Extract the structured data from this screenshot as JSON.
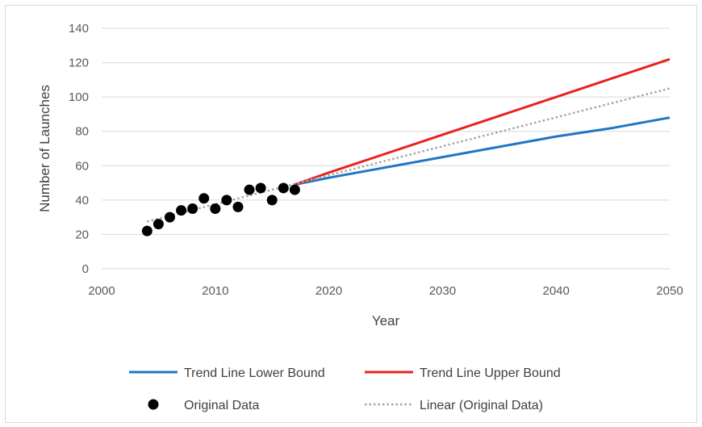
{
  "chart_data": {
    "type": "line",
    "title": "",
    "xlabel": "Year",
    "ylabel": "Number of Launches",
    "xlim": [
      2000,
      2050
    ],
    "ylim": [
      0,
      140
    ],
    "x_ticks": [
      2000,
      2010,
      2020,
      2030,
      2040,
      2050
    ],
    "y_ticks": [
      0,
      20,
      40,
      60,
      80,
      100,
      120,
      140
    ],
    "grid": "horizontal",
    "legend_position": "bottom",
    "series": [
      {
        "name": "Trend Line Lower Bound",
        "kind": "line",
        "color": "#1f77c4",
        "x": [
          2017,
          2020,
          2025,
          2030,
          2035,
          2040,
          2045,
          2050
        ],
        "y": [
          49,
          53,
          59,
          65,
          71,
          77,
          82,
          88
        ]
      },
      {
        "name": "Trend Line Upper Bound",
        "kind": "line",
        "color": "#e8231f",
        "x": [
          2017,
          2020,
          2025,
          2030,
          2035,
          2040,
          2045,
          2050
        ],
        "y": [
          49,
          56,
          67,
          78,
          89,
          100,
          111,
          122
        ]
      },
      {
        "name": "Original Data",
        "kind": "scatter",
        "color": "#000000",
        "x": [
          2004,
          2005,
          2006,
          2007,
          2008,
          2009,
          2010,
          2011,
          2012,
          2013,
          2014,
          2015,
          2016,
          2017
        ],
        "y": [
          22,
          26,
          30,
          34,
          35,
          41,
          35,
          40,
          36,
          46,
          47,
          40,
          47,
          46
        ]
      },
      {
        "name": "Linear (Original Data)",
        "kind": "dotted-line",
        "color": "#a6a6a6",
        "x": [
          2004,
          2050
        ],
        "y": [
          27.5,
          105
        ]
      }
    ],
    "legend": [
      "Trend Line Lower Bound",
      "Trend Line Upper Bound",
      "Original Data",
      "Linear (Original Data)"
    ]
  }
}
